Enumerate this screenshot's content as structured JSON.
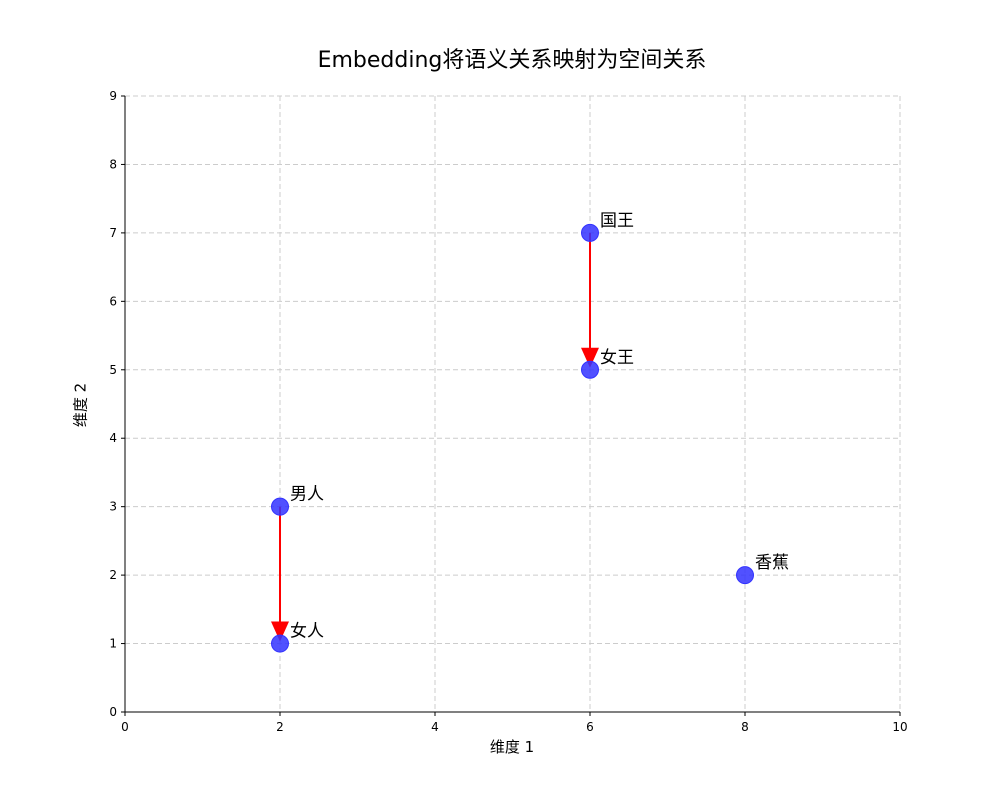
{
  "chart_data": {
    "type": "scatter",
    "title": "Embedding将语义关系映射为空间关系",
    "xlabel": "维度 1",
    "ylabel": "维度 2",
    "xlim": [
      0,
      10
    ],
    "ylim": [
      0,
      9
    ],
    "xticks": [
      0,
      2,
      4,
      6,
      8,
      10
    ],
    "yticks": [
      0,
      1,
      2,
      3,
      4,
      5,
      6,
      7,
      8,
      9
    ],
    "grid": true,
    "points": [
      {
        "label": "国王",
        "x": 6,
        "y": 7
      },
      {
        "label": "女王",
        "x": 6,
        "y": 5
      },
      {
        "label": "男人",
        "x": 2,
        "y": 3
      },
      {
        "label": "女人",
        "x": 2,
        "y": 1
      },
      {
        "label": "香蕉",
        "x": 8,
        "y": 2
      }
    ],
    "arrows": [
      {
        "from": "国王",
        "to": "女王",
        "x1": 6,
        "y1": 7,
        "x2": 6,
        "y2": 5
      },
      {
        "from": "男人",
        "to": "女人",
        "x1": 2,
        "y1": 3,
        "x2": 2,
        "y2": 1
      }
    ],
    "colors": {
      "point": "#3333ff",
      "arrow": "#ff0000",
      "grid": "#cccccc"
    }
  }
}
